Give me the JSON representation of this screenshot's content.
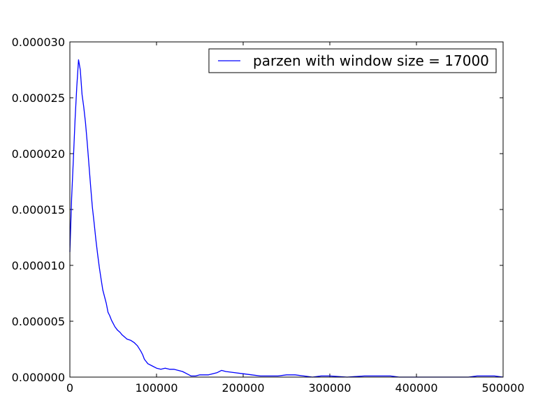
{
  "chart_data": {
    "type": "line",
    "title": "",
    "xlabel": "",
    "ylabel": "",
    "xlim": [
      0,
      500000
    ],
    "ylim": [
      0,
      3e-05
    ],
    "grid": false,
    "legend_position": "top-right",
    "x_ticks": [
      0,
      100000,
      200000,
      300000,
      400000,
      500000
    ],
    "x_tick_labels": [
      "0",
      "100000",
      "200000",
      "300000",
      "400000",
      "500000"
    ],
    "y_ticks": [
      0,
      5e-06,
      1e-05,
      1.5e-05,
      2e-05,
      2.5e-05,
      3e-05
    ],
    "y_tick_labels": [
      "0.000000",
      "0.000005",
      "0.000010",
      "0.000015",
      "0.000020",
      "0.000025",
      "0.000030"
    ],
    "series": [
      {
        "name": "parzen with window size = 17000",
        "color": "#0000ff",
        "x": [
          0,
          2000,
          4000,
          6000,
          8000,
          10000,
          12000,
          14000,
          16000,
          18000,
          20000,
          22000,
          24000,
          26000,
          28000,
          30000,
          32000,
          34000,
          36000,
          38000,
          40000,
          42000,
          44000,
          46000,
          48000,
          50000,
          52000,
          55000,
          58000,
          60000,
          63000,
          66000,
          70000,
          74000,
          78000,
          82000,
          84000,
          86000,
          88000,
          90000,
          95000,
          100000,
          105000,
          110000,
          115000,
          120000,
          125000,
          130000,
          135000,
          140000,
          145000,
          150000,
          160000,
          170000,
          175000,
          180000,
          190000,
          200000,
          210000,
          220000,
          230000,
          240000,
          250000,
          260000,
          270000,
          280000,
          290000,
          300000,
          320000,
          340000,
          360000,
          370000,
          380000,
          400000,
          420000,
          440000,
          460000,
          470000,
          480000,
          490000,
          500000
        ],
        "values": [
          1.12e-05,
          1.6e-05,
          1.95e-05,
          2.3e-05,
          2.6e-05,
          2.84e-05,
          2.75e-05,
          2.53e-05,
          2.42e-05,
          2.28e-05,
          2.1e-05,
          1.9e-05,
          1.7e-05,
          1.52e-05,
          1.38e-05,
          1.23e-05,
          1.1e-05,
          9.8e-06,
          8.8e-06,
          7.8e-06,
          7.2e-06,
          6.6e-06,
          5.8e-06,
          5.5e-06,
          5.1e-06,
          4.8e-06,
          4.5e-06,
          4.2e-06,
          4e-06,
          3.8e-06,
          3.6e-06,
          3.4e-06,
          3.3e-06,
          3.1e-06,
          2.8e-06,
          2.3e-06,
          2e-06,
          1.6e-06,
          1.4e-06,
          1.2e-06,
          1e-06,
          8e-07,
          7e-07,
          8e-07,
          7e-07,
          7e-07,
          6e-07,
          5e-07,
          3e-07,
          1e-07,
          1e-07,
          2e-07,
          2e-07,
          4e-07,
          6e-07,
          5e-07,
          4e-07,
          3e-07,
          2e-07,
          1e-07,
          1e-07,
          1e-07,
          2e-07,
          2e-07,
          1e-07,
          0.0,
          1e-07,
          1e-07,
          0.0,
          1e-07,
          1e-07,
          1e-07,
          0.0,
          0.0,
          0.0,
          0.0,
          0.0,
          1e-07,
          1e-07,
          1e-07,
          0.0
        ]
      }
    ]
  }
}
